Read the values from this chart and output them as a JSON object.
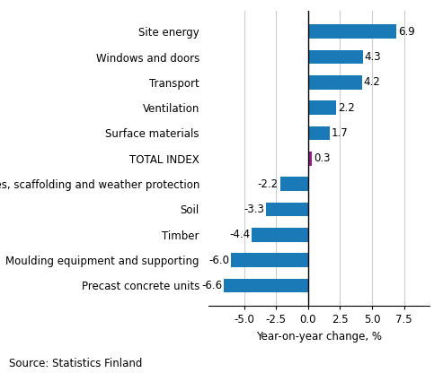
{
  "categories": [
    "Precast concrete units",
    "Moulding equipment and supporting",
    "Timber",
    "Soil",
    "Site facilities, scaffolding and weather protection",
    "TOTAL INDEX",
    "Surface materials",
    "Ventilation",
    "Transport",
    "Windows and doors",
    "Site energy"
  ],
  "values": [
    -6.6,
    -6.0,
    -4.4,
    -3.3,
    -2.2,
    0.3,
    1.7,
    2.2,
    4.2,
    4.3,
    6.9
  ],
  "bar_colors": [
    "#1a7ab8",
    "#1a7ab8",
    "#1a7ab8",
    "#1a7ab8",
    "#1a7ab8",
    "#9b1b8a",
    "#1a7ab8",
    "#1a7ab8",
    "#1a7ab8",
    "#1a7ab8",
    "#1a7ab8"
  ],
  "xlabel": "Year-on-year change, %",
  "xlim": [
    -7.8,
    9.5
  ],
  "xticks": [
    -5.0,
    -2.5,
    0.0,
    2.5,
    5.0,
    7.5
  ],
  "xtick_labels": [
    "-5.0",
    "-2.5",
    "0.0",
    "2.5",
    "5.0",
    "7.5"
  ],
  "source": "Source: Statistics Finland",
  "bar_height": 0.55,
  "grid_color": "#cccccc",
  "label_fontsize": 8.5,
  "xlabel_fontsize": 8.5,
  "source_fontsize": 8.5,
  "value_fontsize": 8.5,
  "total_index_label": "TOTAL INDEX"
}
